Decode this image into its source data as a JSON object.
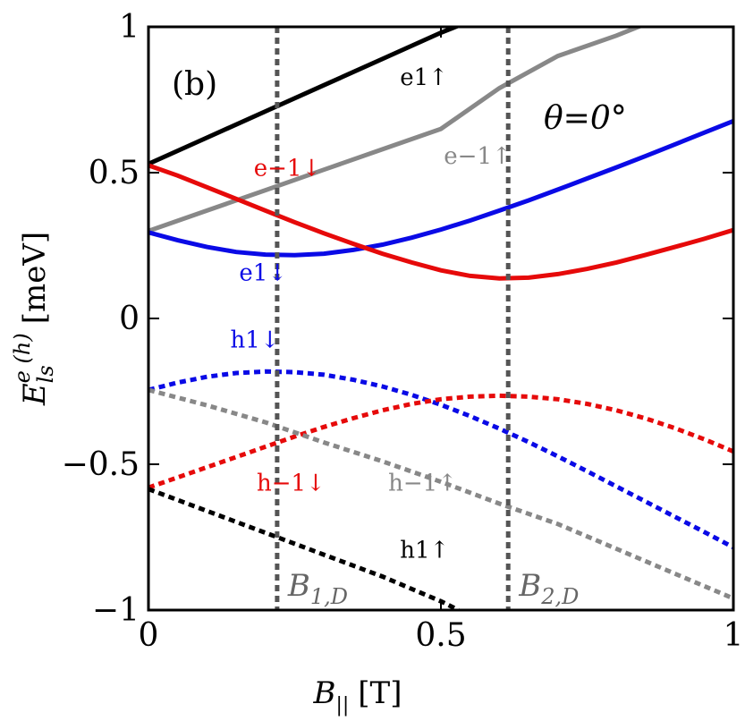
{
  "chart_data": {
    "type": "line",
    "panel_label": "(b)",
    "angle_annotation": "θ=0°",
    "xlabel": "B|| [T]",
    "ylabel": "E_ls^e(h) [meV]",
    "xlabel_parts": {
      "symbol": "B",
      "sub": "||",
      "unit": "[T]"
    },
    "ylabel_parts": {
      "symbol": "E",
      "sub": "ls",
      "sup": "e (h)",
      "unit": "[meV]"
    },
    "xlim": [
      0,
      1
    ],
    "ylim": [
      -1,
      1
    ],
    "xticks": [
      {
        "value": 0,
        "label": "0"
      },
      {
        "value": 0.5,
        "label": "0.5"
      },
      {
        "value": 1,
        "label": "1"
      }
    ],
    "yticks": [
      {
        "value": -1,
        "label": "−1"
      },
      {
        "value": -0.5,
        "label": "−0.5"
      },
      {
        "value": 0,
        "label": "0"
      },
      {
        "value": 0.5,
        "label": "0.5"
      },
      {
        "value": 1,
        "label": "1"
      }
    ],
    "vertical_markers": [
      {
        "x": 0.22,
        "label_symbol": "B",
        "label_sub": "1,D",
        "label": "B1,D"
      },
      {
        "x": 0.615,
        "label_symbol": "B",
        "label_sub": "2,D",
        "label": "B2,D"
      }
    ],
    "series": [
      {
        "name": "e1↑",
        "color": "#000000",
        "style": "solid",
        "x": [
          0,
          0.1,
          0.2,
          0.3,
          0.4,
          0.5,
          0.55
        ],
        "y": [
          0.53,
          0.62,
          0.71,
          0.8,
          0.89,
          0.98,
          1.02
        ]
      },
      {
        "name": "e−1↑",
        "color": "#888888",
        "style": "solid",
        "x": [
          0,
          0.1,
          0.2,
          0.3,
          0.4,
          0.5,
          0.6,
          0.7,
          0.8,
          0.85
        ],
        "y": [
          0.3,
          0.37,
          0.44,
          0.51,
          0.58,
          0.65,
          0.79,
          0.9,
          0.97,
          1.01
        ]
      },
      {
        "name": "e1↓",
        "color": "#0a0ae6",
        "style": "solid",
        "x": [
          0,
          0.05,
          0.1,
          0.15,
          0.2,
          0.25,
          0.3,
          0.35,
          0.4,
          0.45,
          0.5,
          0.55,
          0.6,
          0.65,
          0.7,
          0.75,
          0.8,
          0.85,
          0.9,
          0.95,
          1.0
        ],
        "y": [
          0.295,
          0.268,
          0.245,
          0.228,
          0.219,
          0.217,
          0.222,
          0.235,
          0.253,
          0.277,
          0.305,
          0.336,
          0.37,
          0.405,
          0.442,
          0.48,
          0.518,
          0.557,
          0.597,
          0.637,
          0.677
        ]
      },
      {
        "name": "e−1↓",
        "color": "#e60a0a",
        "style": "solid",
        "x": [
          0,
          0.05,
          0.1,
          0.15,
          0.2,
          0.25,
          0.3,
          0.35,
          0.4,
          0.45,
          0.5,
          0.55,
          0.6,
          0.65,
          0.7,
          0.75,
          0.8,
          0.85,
          0.9,
          0.95,
          1.0
        ],
        "y": [
          0.525,
          0.49,
          0.45,
          0.41,
          0.37,
          0.33,
          0.292,
          0.256,
          0.222,
          0.192,
          0.165,
          0.146,
          0.137,
          0.14,
          0.152,
          0.17,
          0.192,
          0.218,
          0.245,
          0.273,
          0.303
        ]
      },
      {
        "name": "h1↓",
        "color": "#0a0ae6",
        "style": "dotted",
        "x": [
          0,
          0.05,
          0.1,
          0.15,
          0.2,
          0.25,
          0.3,
          0.35,
          0.4,
          0.45,
          0.5,
          0.55,
          0.6,
          0.65,
          0.7,
          0.75,
          0.8,
          0.85,
          0.9,
          0.95,
          1.0
        ],
        "y": [
          -0.245,
          -0.22,
          -0.2,
          -0.187,
          -0.182,
          -0.184,
          -0.193,
          -0.21,
          -0.233,
          -0.262,
          -0.296,
          -0.335,
          -0.378,
          -0.424,
          -0.473,
          -0.524,
          -0.576,
          -0.628,
          -0.68,
          -0.732,
          -0.785
        ]
      },
      {
        "name": "h−1↓",
        "color": "#e60a0a",
        "style": "dotted",
        "x": [
          0,
          0.05,
          0.1,
          0.15,
          0.2,
          0.25,
          0.3,
          0.35,
          0.4,
          0.45,
          0.5,
          0.55,
          0.6,
          0.65,
          0.7,
          0.75,
          0.8,
          0.85,
          0.9,
          0.95,
          1.0
        ],
        "y": [
          -0.58,
          -0.545,
          -0.51,
          -0.475,
          -0.44,
          -0.405,
          -0.372,
          -0.342,
          -0.315,
          -0.293,
          -0.277,
          -0.268,
          -0.265,
          -0.268,
          -0.277,
          -0.293,
          -0.315,
          -0.343,
          -0.376,
          -0.414,
          -0.456
        ]
      },
      {
        "name": "h−1↑",
        "color": "#888888",
        "style": "dotted",
        "x": [
          0,
          0.1,
          0.2,
          0.3,
          0.4,
          0.5,
          0.6,
          0.7,
          0.8,
          0.9,
          1.0
        ],
        "y": [
          -0.245,
          -0.298,
          -0.356,
          -0.425,
          -0.49,
          -0.56,
          -0.635,
          -0.705,
          -0.79,
          -0.875,
          -0.96
        ]
      },
      {
        "name": "h1↑",
        "color": "#000000",
        "style": "dotted",
        "x": [
          0,
          0.1,
          0.2,
          0.3,
          0.4,
          0.5,
          0.53
        ],
        "y": [
          -0.585,
          -0.66,
          -0.735,
          -0.81,
          -0.885,
          -0.97,
          -1.0
        ]
      }
    ],
    "annotations": [
      {
        "text": "e1↑",
        "x": 0.43,
        "y": 0.8,
        "color": "#000000"
      },
      {
        "text": "e−1↑",
        "x": 0.505,
        "y": 0.53,
        "color": "#888888"
      },
      {
        "text": "e1↓",
        "x": 0.155,
        "y": 0.13,
        "color": "#0a0ae6"
      },
      {
        "text": "e−1↓",
        "x": 0.18,
        "y": 0.49,
        "color": "#e60a0a"
      },
      {
        "text": "h1↓",
        "x": 0.14,
        "y": -0.1,
        "color": "#0a0ae6"
      },
      {
        "text": "h−1↓",
        "x": 0.185,
        "y": -0.59,
        "color": "#e60a0a"
      },
      {
        "text": "h−1↑",
        "x": 0.41,
        "y": -0.59,
        "color": "#888888"
      },
      {
        "text": "h1↑",
        "x": 0.43,
        "y": -0.82,
        "color": "#000000"
      }
    ]
  }
}
